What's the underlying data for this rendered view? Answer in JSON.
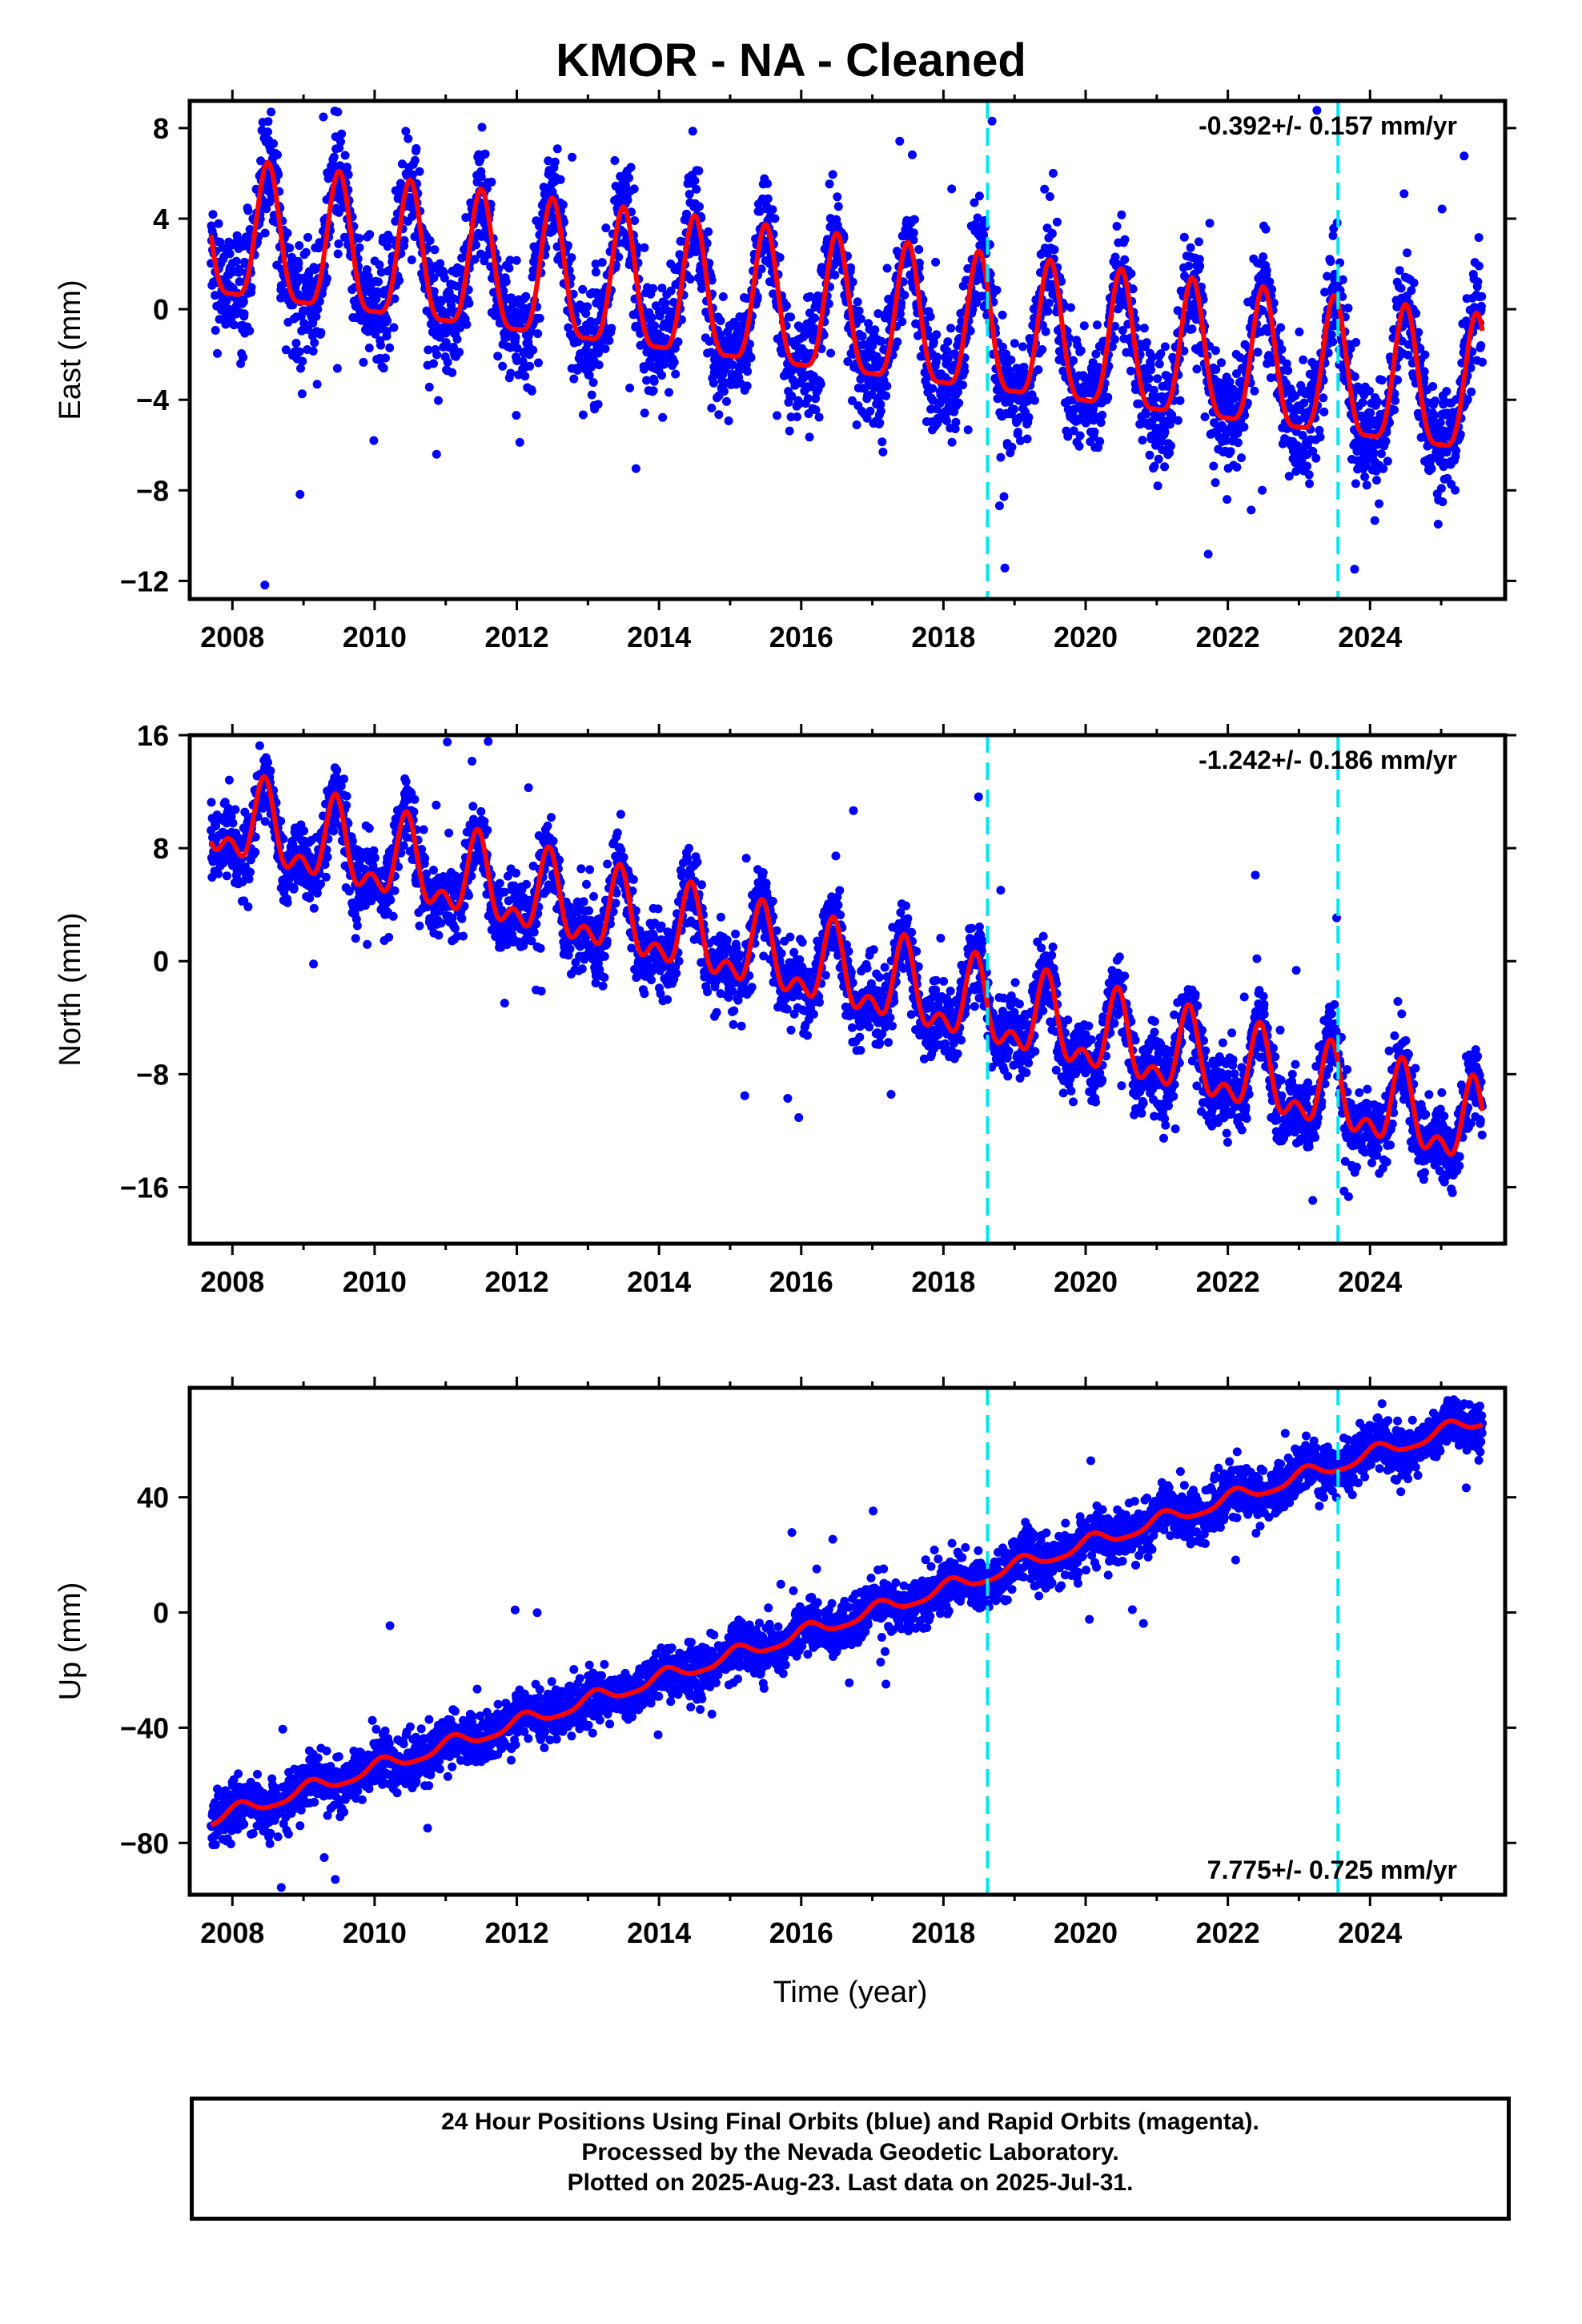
{
  "title": "KMOR  - NA - Cleaned",
  "xlabel": "Time (year)",
  "footer": {
    "line1": "24 Hour Positions Using Final Orbits (blue) and Rapid Orbits (magenta).",
    "line2": "Processed by the Nevada Geodetic Laboratory.",
    "line3": "Plotted on 2025-Aug-23. Last data on 2025-Jul-31."
  },
  "colors": {
    "data_points": "#0000ff",
    "model_fit": "#ff0000",
    "equipment_change": "#00e5ee",
    "frame": "#000000"
  },
  "chart_data": [
    {
      "type": "scatter",
      "component": "East",
      "ylabel": "East (mm)",
      "ylim": [
        -12.8,
        9.2
      ],
      "xlim": [
        2007.4,
        2025.9
      ],
      "yticks": [
        -12,
        -8,
        -4,
        0,
        4,
        8
      ],
      "xticks": [
        2008,
        2010,
        2012,
        2014,
        2016,
        2018,
        2020,
        2022,
        2024
      ],
      "grid": false,
      "rate_label": "-0.392+/- 0.157 mm/yr",
      "rate_position": "top-right",
      "model": {
        "intercept": 3.0,
        "ref_year": 2007.7,
        "rate": -0.392,
        "amp1": 3.0,
        "phase1": 2008.5,
        "amp2": 0.8,
        "phase2": 2008.5
      },
      "scatter": 2.2,
      "offsets_years": [
        2018.62,
        2023.55
      ]
    },
    {
      "type": "scatter",
      "component": "North",
      "ylabel": "North (mm)",
      "ylim": [
        -20.0,
        16.0
      ],
      "xlim": [
        2007.4,
        2025.9
      ],
      "yticks": [
        -16,
        -8,
        0,
        8,
        16
      ],
      "xticks": [
        2008,
        2010,
        2012,
        2014,
        2016,
        2018,
        2020,
        2022,
        2024
      ],
      "grid": false,
      "rate_label": "-1.242+/- 0.186 mm/yr",
      "rate_position": "top-right",
      "model": {
        "intercept": 10.0,
        "ref_year": 2007.7,
        "rate": -1.242,
        "amp1": 2.5,
        "phase1": 2008.45,
        "amp2": 1.5,
        "phase2": 2008.45
      },
      "scatter": 2.4,
      "offsets_years": [
        2018.62,
        2023.55
      ]
    },
    {
      "type": "scatter",
      "component": "Up",
      "ylabel": "Up (mm)",
      "ylim": [
        -98,
        78
      ],
      "xlim": [
        2007.4,
        2025.9
      ],
      "yticks": [
        -80,
        -40,
        0,
        40
      ],
      "xticks": [
        2008,
        2010,
        2012,
        2014,
        2016,
        2018,
        2020,
        2022,
        2024
      ],
      "grid": false,
      "rate_label": "7.775+/- 0.725 mm/yr",
      "rate_position": "bottom-right",
      "model": {
        "intercept": -72.0,
        "ref_year": 2007.7,
        "rate": 7.775,
        "amp1": 2.5,
        "phase1": 2008.1,
        "amp2": 0.6,
        "phase2": 2008.1
      },
      "scatter": 8.0,
      "offsets_years": [
        2018.62,
        2023.55
      ]
    }
  ]
}
